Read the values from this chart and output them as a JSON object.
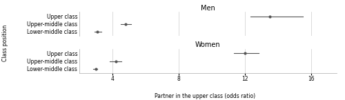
{
  "men": {
    "labels": [
      "Upper class",
      "Upper-middle class",
      "Lower-middle class"
    ],
    "means": [
      13.5,
      4.8,
      3.1
    ],
    "ci_lo": [
      12.3,
      4.5,
      2.9
    ],
    "ci_hi": [
      15.5,
      5.1,
      3.35
    ],
    "title": "Men"
  },
  "women": {
    "labels": [
      "Upper class",
      "Upper-middle class",
      "Lower-middle class"
    ],
    "means": [
      12.0,
      4.2,
      3.0
    ],
    "ci_lo": [
      11.3,
      3.85,
      2.85
    ],
    "ci_hi": [
      12.8,
      4.55,
      3.1
    ],
    "title": "Women"
  },
  "xlabel": "Partner in the upper class (odds ratio)",
  "ylabel": "Class position",
  "xlim": [
    2.0,
    17.5
  ],
  "xticks": [
    4,
    8,
    12,
    16
  ],
  "dot_color": "#555555",
  "dot_size": 3.0,
  "line_color": "#555555",
  "line_width": 0.8,
  "bg_color": "#ffffff",
  "grid_color": "#cccccc",
  "font_size": 5.5,
  "title_font_size": 7.0
}
